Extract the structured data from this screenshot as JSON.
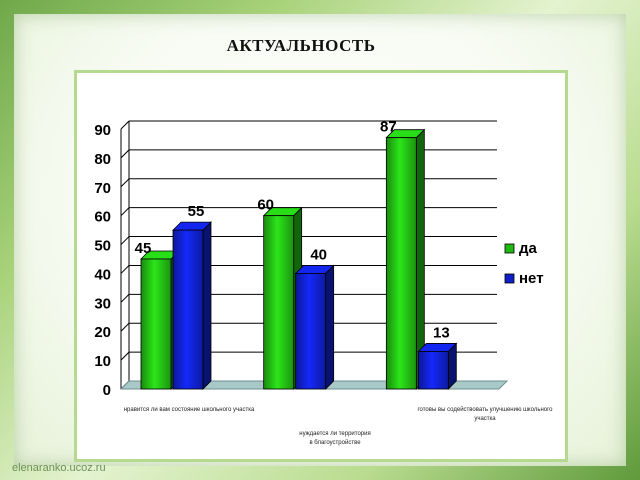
{
  "slide": {
    "title": "АКТУАЛЬНОСТЬ",
    "watermark": "elenaranko.ucoz.ru"
  },
  "chart_data": {
    "type": "bar",
    "title": "",
    "categories": [
      "нравится ли вам состояние школьного участка",
      "нуждается ли территория в благоустройстве",
      "готовы вы содействовать улучшению школьного участка"
    ],
    "series": [
      {
        "name": "да",
        "values": [
          45,
          60,
          87
        ],
        "color": "#22b814"
      },
      {
        "name": "нет",
        "values": [
          55,
          40,
          13
        ],
        "color": "#1020c8"
      }
    ],
    "ylim": [
      0,
      90
    ],
    "yticks": [
      "0",
      "10",
      "20",
      "30",
      "40",
      "50",
      "60",
      "70",
      "80",
      "90"
    ],
    "grid": true,
    "legend_position": "right",
    "data_labels": true
  }
}
